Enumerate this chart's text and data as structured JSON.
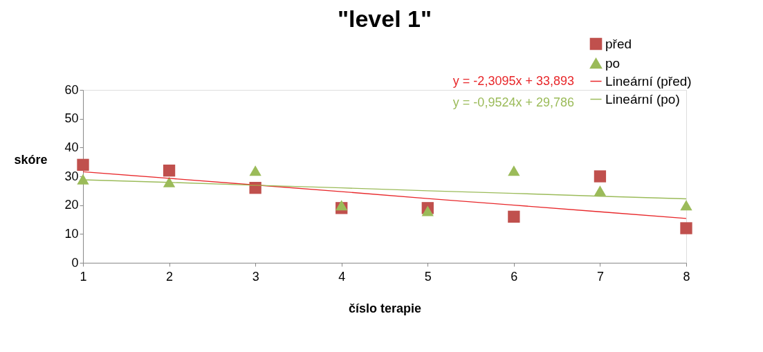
{
  "chart_data": {
    "type": "scatter",
    "title": "\"level 1\"",
    "xlabel": "číslo terapie",
    "ylabel": "skóre",
    "x": [
      1,
      2,
      3,
      4,
      5,
      6,
      7,
      8
    ],
    "series": [
      {
        "name": "před",
        "marker": "square",
        "color": "#c0504d",
        "values": [
          34,
          32,
          26,
          19,
          19,
          16,
          30,
          12
        ]
      },
      {
        "name": "po",
        "marker": "triangle",
        "color": "#9bbb59",
        "values": [
          29,
          28,
          32,
          20,
          18,
          32,
          25,
          20
        ]
      },
      {
        "name": "Lineární (před)",
        "type": "line",
        "marker": "none",
        "color": "#e8272a",
        "values": [
          31.6,
          29.3,
          27.0,
          24.7,
          22.3,
          20.0,
          17.7,
          15.4
        ]
      },
      {
        "name": "Lineární (po)",
        "type": "line",
        "marker": "none",
        "color": "#9bbb59",
        "values": [
          28.8,
          27.9,
          26.9,
          26.0,
          25.0,
          24.1,
          23.1,
          22.2
        ]
      }
    ],
    "annotations": [
      "y = -2,3095x + 33,893",
      "y = -0,9524x + 29,786"
    ],
    "xlim": [
      1,
      8
    ],
    "xticks": [
      1,
      2,
      3,
      4,
      5,
      6,
      7,
      8
    ],
    "ylim": [
      0,
      60
    ],
    "yticks": [
      0,
      10,
      20,
      30,
      40,
      50,
      60
    ],
    "grid": false,
    "legend": "top right"
  }
}
